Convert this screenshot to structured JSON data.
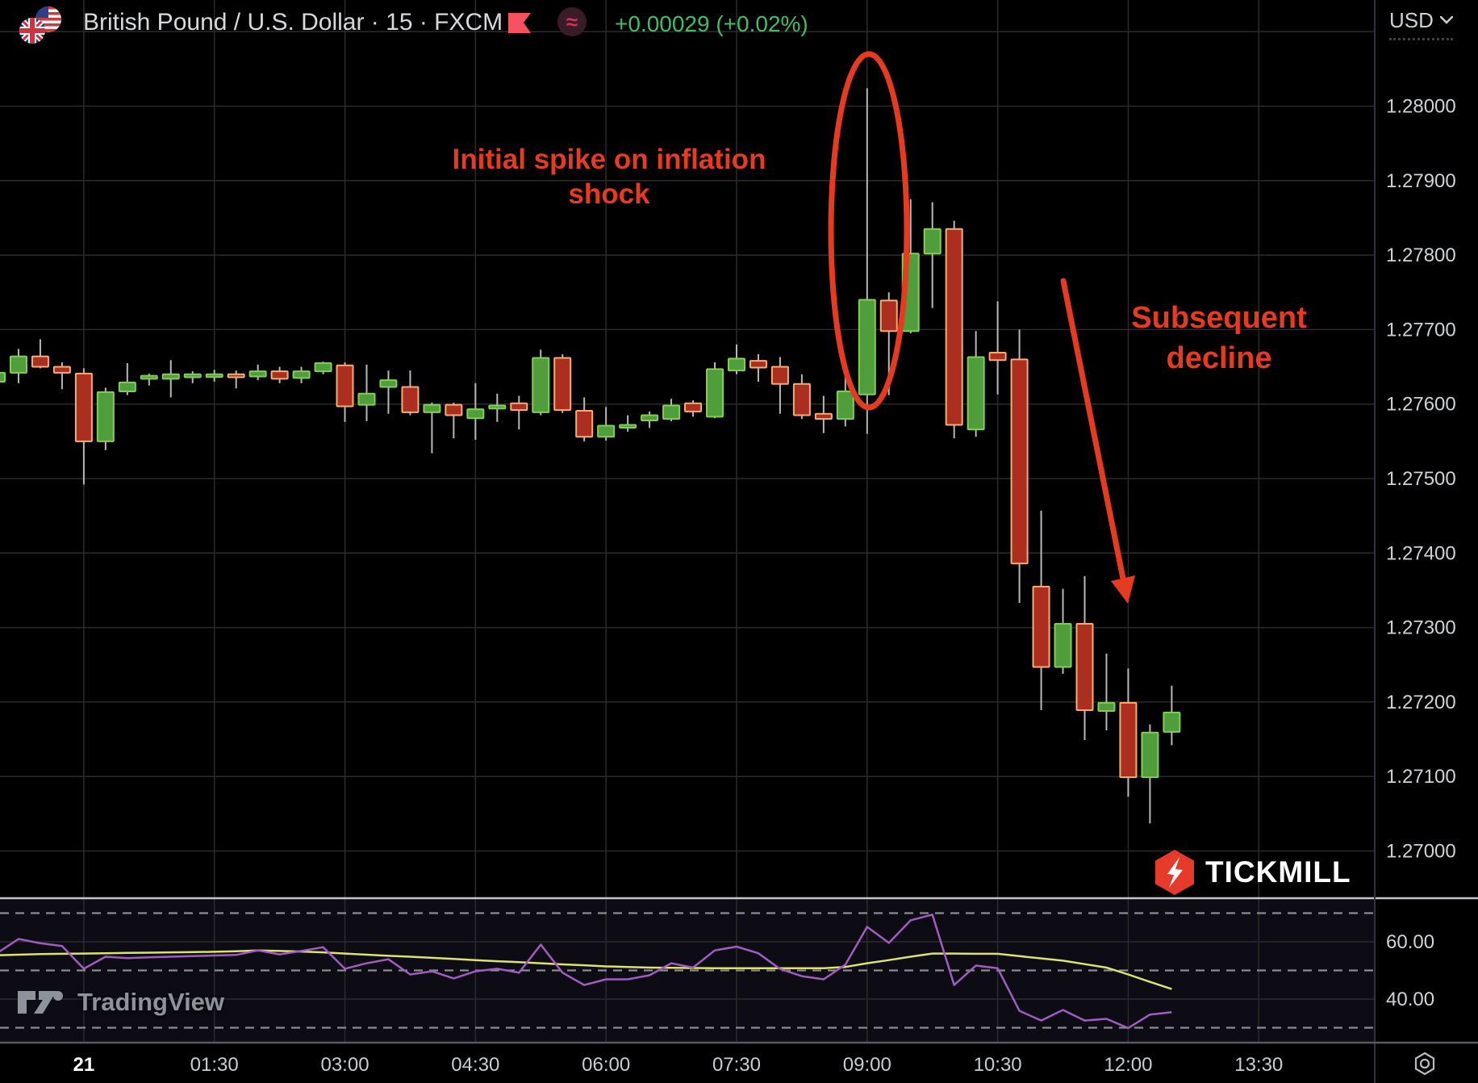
{
  "header": {
    "symbol_title": "British Pound / U.S. Dollar · 15 · FXCM",
    "change_text": "+0.00029 (+0.02%)",
    "change_color": "#3fbf5f",
    "approx_glyph": "≈",
    "currency_label": "USD"
  },
  "annotations": [
    {
      "id": "spike",
      "lines": [
        "Initial spike on inflation",
        "shock"
      ]
    },
    {
      "id": "decline",
      "lines": [
        "Subsequent",
        "decline"
      ]
    }
  ],
  "watermarks": {
    "tradingview": "TradingView",
    "tickmill": "TICKMILL"
  },
  "colors": {
    "up_body": "#4f9d3b",
    "up_border": "#82ce54",
    "down_body": "#ab2e1f",
    "down_border": "#f3ae74",
    "wick": "#b8b8b8",
    "grid": "#2b2b2b",
    "rsi": "#a15cc2",
    "rsi_ma": "#dde26a",
    "band": "#8b8b90",
    "annotation": "#e63b20",
    "pane_bg": "#0d0b13",
    "pane_separator": "#c3c6cc",
    "axis_border": "#565a62",
    "axis_text": "#cfd2d6",
    "tickmill_red": "#e63a2a"
  },
  "chart_data": {
    "type": "candlestick_with_rsi",
    "symbol": "British Pound / U.S. Dollar",
    "interval": "15",
    "exchange": "FXCM",
    "price_axis_labels": [
      1.28,
      1.279,
      1.278,
      1.277,
      1.276,
      1.275,
      1.274,
      1.273,
      1.272,
      1.271,
      1.27
    ],
    "time_axis_labels": [
      {
        "text": "21",
        "index": 4,
        "bold": true
      },
      {
        "text": "01:30",
        "index": 10
      },
      {
        "text": "03:00",
        "index": 16
      },
      {
        "text": "04:30",
        "index": 22
      },
      {
        "text": "06:00",
        "index": 28
      },
      {
        "text": "07:30",
        "index": 34
      },
      {
        "text": "09:00",
        "index": 40
      },
      {
        "text": "10:30",
        "index": 46
      },
      {
        "text": "12:00",
        "index": 52
      },
      {
        "text": "13:30",
        "index": 58
      }
    ],
    "candles": [
      {
        "t": "23:00",
        "o": 1.2763,
        "h": 1.27648,
        "l": 1.27615,
        "c": 1.27642
      },
      {
        "t": "23:15",
        "o": 1.27642,
        "h": 1.27674,
        "l": 1.27628,
        "c": 1.27664
      },
      {
        "t": "23:30",
        "o": 1.27664,
        "h": 1.27687,
        "l": 1.27648,
        "c": 1.2765
      },
      {
        "t": "23:45",
        "o": 1.2765,
        "h": 1.27656,
        "l": 1.2762,
        "c": 1.27642
      },
      {
        "t": "00:00",
        "o": 1.27641,
        "h": 1.27648,
        "l": 1.27492,
        "c": 1.2755
      },
      {
        "t": "00:15",
        "o": 1.2755,
        "h": 1.27622,
        "l": 1.27538,
        "c": 1.27616
      },
      {
        "t": "00:30",
        "o": 1.27617,
        "h": 1.27655,
        "l": 1.27612,
        "c": 1.27629
      },
      {
        "t": "00:45",
        "o": 1.27634,
        "h": 1.27641,
        "l": 1.27625,
        "c": 1.27638
      },
      {
        "t": "01:00",
        "o": 1.27634,
        "h": 1.27659,
        "l": 1.27609,
        "c": 1.2764
      },
      {
        "t": "01:15",
        "o": 1.27636,
        "h": 1.27644,
        "l": 1.27628,
        "c": 1.2764
      },
      {
        "t": "01:30",
        "o": 1.27637,
        "h": 1.27646,
        "l": 1.2763,
        "c": 1.2764
      },
      {
        "t": "01:45",
        "o": 1.2764,
        "h": 1.27645,
        "l": 1.27621,
        "c": 1.27636
      },
      {
        "t": "02:00",
        "o": 1.27637,
        "h": 1.27653,
        "l": 1.27632,
        "c": 1.27644
      },
      {
        "t": "02:15",
        "o": 1.27644,
        "h": 1.2765,
        "l": 1.27628,
        "c": 1.27634
      },
      {
        "t": "02:30",
        "o": 1.27635,
        "h": 1.2765,
        "l": 1.27628,
        "c": 1.27644
      },
      {
        "t": "02:45",
        "o": 1.27644,
        "h": 1.27657,
        "l": 1.2764,
        "c": 1.27655
      },
      {
        "t": "03:00",
        "o": 1.27652,
        "h": 1.27656,
        "l": 1.27576,
        "c": 1.27597
      },
      {
        "t": "03:15",
        "o": 1.27599,
        "h": 1.27653,
        "l": 1.27577,
        "c": 1.27614
      },
      {
        "t": "03:30",
        "o": 1.27623,
        "h": 1.27645,
        "l": 1.27587,
        "c": 1.27632
      },
      {
        "t": "03:45",
        "o": 1.27623,
        "h": 1.27645,
        "l": 1.27585,
        "c": 1.27589
      },
      {
        "t": "04:00",
        "o": 1.27589,
        "h": 1.27602,
        "l": 1.27534,
        "c": 1.27599
      },
      {
        "t": "04:15",
        "o": 1.27599,
        "h": 1.27602,
        "l": 1.27554,
        "c": 1.27585
      },
      {
        "t": "04:30",
        "o": 1.27581,
        "h": 1.27628,
        "l": 1.27552,
        "c": 1.27593
      },
      {
        "t": "04:45",
        "o": 1.27594,
        "h": 1.27614,
        "l": 1.27576,
        "c": 1.27598
      },
      {
        "t": "05:00",
        "o": 1.27601,
        "h": 1.27611,
        "l": 1.27566,
        "c": 1.27592
      },
      {
        "t": "05:15",
        "o": 1.27589,
        "h": 1.27673,
        "l": 1.27585,
        "c": 1.27662
      },
      {
        "t": "05:30",
        "o": 1.27662,
        "h": 1.27667,
        "l": 1.27588,
        "c": 1.27592
      },
      {
        "t": "05:45",
        "o": 1.27591,
        "h": 1.27609,
        "l": 1.2755,
        "c": 1.27556
      },
      {
        "t": "06:00",
        "o": 1.27556,
        "h": 1.27596,
        "l": 1.27551,
        "c": 1.27571
      },
      {
        "t": "06:15",
        "o": 1.2757,
        "h": 1.27585,
        "l": 1.27563,
        "c": 1.27572
      },
      {
        "t": "06:30",
        "o": 1.27578,
        "h": 1.2759,
        "l": 1.27568,
        "c": 1.27585
      },
      {
        "t": "06:45",
        "o": 1.2758,
        "h": 1.27607,
        "l": 1.27577,
        "c": 1.27598
      },
      {
        "t": "07:00",
        "o": 1.27601,
        "h": 1.27605,
        "l": 1.27583,
        "c": 1.2759
      },
      {
        "t": "07:15",
        "o": 1.27583,
        "h": 1.27656,
        "l": 1.27581,
        "c": 1.27647
      },
      {
        "t": "07:30",
        "o": 1.27645,
        "h": 1.2768,
        "l": 1.2764,
        "c": 1.27661
      },
      {
        "t": "07:45",
        "o": 1.27658,
        "h": 1.27667,
        "l": 1.2763,
        "c": 1.27649
      },
      {
        "t": "08:00",
        "o": 1.2765,
        "h": 1.27663,
        "l": 1.27587,
        "c": 1.27627
      },
      {
        "t": "08:15",
        "o": 1.27627,
        "h": 1.2764,
        "l": 1.2758,
        "c": 1.27585
      },
      {
        "t": "08:30",
        "o": 1.27587,
        "h": 1.27611,
        "l": 1.27561,
        "c": 1.2758
      },
      {
        "t": "08:45",
        "o": 1.2758,
        "h": 1.27651,
        "l": 1.2757,
        "c": 1.27617
      },
      {
        "t": "09:00",
        "o": 1.27613,
        "h": 1.28024,
        "l": 1.2756,
        "c": 1.2774
      },
      {
        "t": "09:15",
        "o": 1.27739,
        "h": 1.2775,
        "l": 1.27612,
        "c": 1.27698
      },
      {
        "t": "09:30",
        "o": 1.27698,
        "h": 1.27875,
        "l": 1.27695,
        "c": 1.27802
      },
      {
        "t": "09:45",
        "o": 1.27802,
        "h": 1.27871,
        "l": 1.27729,
        "c": 1.27835
      },
      {
        "t": "10:00",
        "o": 1.27835,
        "h": 1.27846,
        "l": 1.27554,
        "c": 1.27572
      },
      {
        "t": "10:15",
        "o": 1.27566,
        "h": 1.27698,
        "l": 1.27556,
        "c": 1.27663
      },
      {
        "t": "10:30",
        "o": 1.27669,
        "h": 1.27738,
        "l": 1.27613,
        "c": 1.27659
      },
      {
        "t": "10:45",
        "o": 1.2766,
        "h": 1.277,
        "l": 1.27333,
        "c": 1.27386
      },
      {
        "t": "11:00",
        "o": 1.27355,
        "h": 1.27457,
        "l": 1.27189,
        "c": 1.27247
      },
      {
        "t": "11:15",
        "o": 1.27247,
        "h": 1.27352,
        "l": 1.27238,
        "c": 1.27305
      },
      {
        "t": "11:30",
        "o": 1.27305,
        "h": 1.27369,
        "l": 1.27149,
        "c": 1.27189
      },
      {
        "t": "11:45",
        "o": 1.27188,
        "h": 1.27265,
        "l": 1.27162,
        "c": 1.27199
      },
      {
        "t": "12:00",
        "o": 1.27199,
        "h": 1.27245,
        "l": 1.27073,
        "c": 1.27099
      },
      {
        "t": "12:15",
        "o": 1.27099,
        "h": 1.2717,
        "l": 1.27037,
        "c": 1.27159
      },
      {
        "t": "12:30",
        "o": 1.2716,
        "h": 1.27222,
        "l": 1.27142,
        "c": 1.27186
      }
    ],
    "rsi": [
      56,
      61,
      59.5,
      58.5,
      50.6,
      54.8,
      54.3,
      54.6,
      54.8,
      55,
      55.2,
      55.4,
      57,
      55.6,
      56.8,
      58.1,
      50.6,
      52.5,
      53.9,
      48.6,
      49.7,
      47.2,
      49.7,
      50.6,
      49.2,
      59,
      49.2,
      44.9,
      46.9,
      46.9,
      48.3,
      52.5,
      51,
      57,
      58.3,
      56,
      50.5,
      48,
      46.9,
      52,
      65.2,
      59.6,
      67.5,
      69.5,
      44.9,
      51.7,
      50.8,
      35.9,
      32.5,
      36.2,
      32.5,
      33.1,
      29.9,
      34.6,
      35.4
    ],
    "rsi_ma": [
      55.3,
      55.5,
      55.7,
      55.8,
      55.9,
      56,
      56.1,
      56.2,
      56.3,
      56.4,
      56.5,
      56.7,
      57,
      56.8,
      56.6,
      56.3,
      55.9,
      55.5,
      55.1,
      54.8,
      54.4,
      54,
      53.6,
      53.2,
      52.9,
      52.5,
      52.1,
      51.8,
      51.4,
      51.2,
      51,
      50.9,
      50.85,
      50.8,
      50.8,
      50.8,
      50.8,
      50.8,
      50.8,
      51.2,
      52.5,
      53.6,
      54.8,
      55.9,
      55.9,
      55.8,
      55.8,
      55,
      54.2,
      53.4,
      52.2,
      51,
      48.6,
      46,
      43.5
    ],
    "rsi_bands_dashed": [
      70,
      50,
      30
    ],
    "rsi_gridlines": [
      60,
      40
    ],
    "rsi_axis_labels": [
      {
        "v": 60,
        "text": "60.00"
      },
      {
        "v": 40,
        "text": "40.00"
      }
    ]
  }
}
